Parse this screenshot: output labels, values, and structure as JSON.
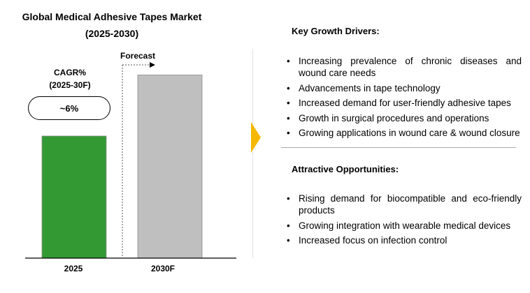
{
  "left_panel": {
    "title_line1": "Global Medical Adhesive Tapes  Market",
    "title_line2": "(2025-2030)",
    "cagr_label_line1": "CAGR%",
    "cagr_label_line2": "(2025-30F)",
    "cagr_value": "~6%",
    "forecast_label": "Forecast"
  },
  "chart_data": {
    "type": "bar",
    "categories": [
      "2025",
      "2030F"
    ],
    "values": [
      1.0,
      1.5
    ],
    "colors": [
      "#339933",
      "#bfbfbf"
    ],
    "xlabel": "",
    "ylabel": "",
    "ylim": [
      0,
      1.6
    ],
    "grid": false
  },
  "right_panel": {
    "drivers_heading": "Key Growth Drivers:",
    "drivers": [
      "Increasing prevalence of chronic diseases and wound care needs",
      "Advancements in tape technology",
      "Increased demand for user-friendly adhesive tapes",
      "Growth in surgical procedures and operations",
      "Growing applications in wound care & wound closure"
    ],
    "opportunities_heading": "Attractive Opportunities:",
    "opportunities": [
      "Rising demand for biocompatible and eco-friendly products",
      "Growing integration with wearable medical devices",
      "Increased focus on infection control"
    ],
    "bullet_char": "•",
    "accent_color": "#f5b800"
  }
}
